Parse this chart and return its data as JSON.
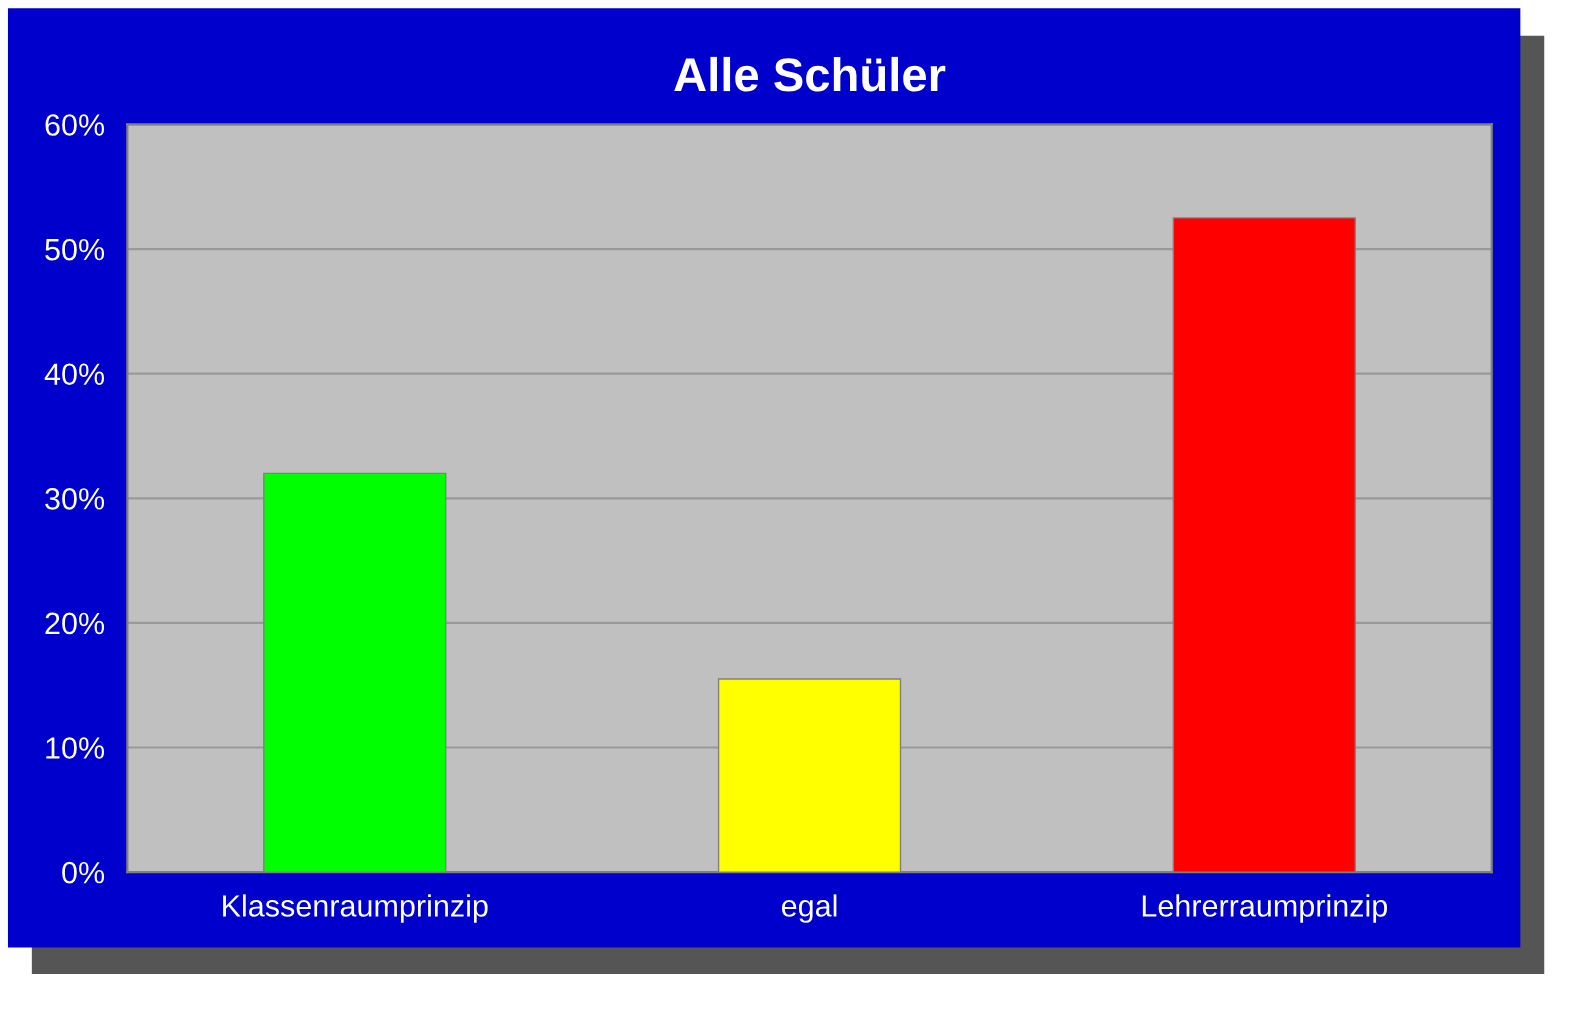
{
  "chart_data": {
    "type": "bar",
    "title": "Alle Schüler",
    "categories": [
      "Klassenraumprinzip",
      "egal",
      "Lehrerraumprinzip"
    ],
    "values": [
      32,
      15.5,
      52.5
    ],
    "colors": [
      "#00ff00",
      "#ffff00",
      "#ff0000"
    ],
    "ylim": [
      0,
      60
    ],
    "yticks": [
      {
        "value": 0,
        "label": "0%"
      },
      {
        "value": 10,
        "label": "10%"
      },
      {
        "value": 20,
        "label": "20%"
      },
      {
        "value": 30,
        "label": "30%"
      },
      {
        "value": 40,
        "label": "40%"
      },
      {
        "value": 50,
        "label": "50%"
      },
      {
        "value": 60,
        "label": "60%"
      }
    ],
    "grid": "y",
    "legend": false
  }
}
